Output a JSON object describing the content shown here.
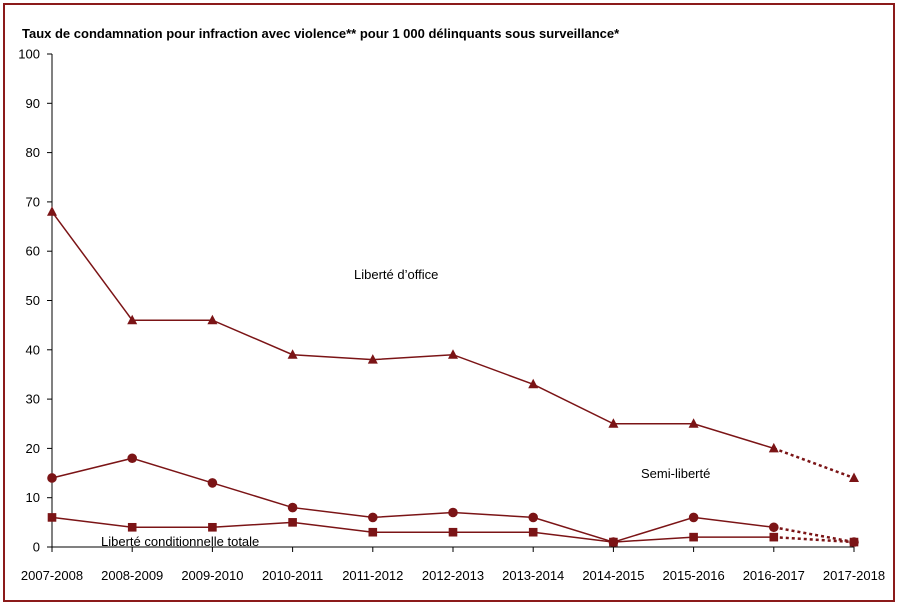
{
  "chart_data": {
    "type": "line",
    "title": "Taux de condamnation pour infraction avec violence** pour 1 000 délinquants sous surveillance*",
    "xlabel": "",
    "ylabel": "",
    "ylim": [
      0,
      100
    ],
    "yticks": [
      0,
      10,
      20,
      30,
      40,
      50,
      60,
      70,
      80,
      90,
      100
    ],
    "grid": false,
    "categories": [
      "2007-2008",
      "2008-2009",
      "2009-2010",
      "2010-2011",
      "2011-2012",
      "2012-2013",
      "2013-2014",
      "2014-2015",
      "2015-2016",
      "2016-2017",
      "2017-2018"
    ],
    "colors": {
      "line": "#7b1416",
      "axis": "#000000",
      "border": "#8b1a1a"
    },
    "series": [
      {
        "name": "Liberté d'office",
        "marker": "triangle",
        "values": [
          68,
          46,
          46,
          39,
          38,
          39,
          33,
          25,
          25,
          20,
          14
        ],
        "dotted_last_segment": true
      },
      {
        "name": "Semi-liberté",
        "marker": "circle",
        "values": [
          14,
          18,
          13,
          8,
          6,
          7,
          6,
          1,
          6,
          4,
          1
        ],
        "dotted_last_segment": true
      },
      {
        "name": "Liberté conditionnelle totale",
        "marker": "square",
        "values": [
          6,
          4,
          4,
          5,
          3,
          3,
          3,
          1,
          2,
          2,
          1
        ],
        "dotted_last_segment": true
      }
    ],
    "annotations": [
      {
        "text": "Liberté d’office",
        "series": 0
      },
      {
        "text": "Semi-liberté",
        "series": 1
      },
      {
        "text": "Liberté conditionnelle totale",
        "series": 2
      }
    ]
  }
}
